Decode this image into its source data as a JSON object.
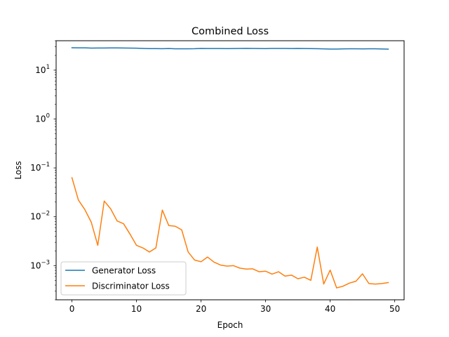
{
  "chart_data": {
    "type": "line",
    "title": "Combined Loss",
    "xlabel": "Epoch",
    "ylabel": "Loss",
    "yscale": "log",
    "xlim": [
      -2.45,
      51.45
    ],
    "ylim": [
      0.0002,
      40
    ],
    "xticks": [
      0,
      10,
      20,
      30,
      40,
      50
    ],
    "yticks": [
      {
        "value": 0.001,
        "base": "10",
        "exp": "−3"
      },
      {
        "value": 0.01,
        "base": "10",
        "exp": "−2"
      },
      {
        "value": 0.1,
        "base": "10",
        "exp": "−1"
      },
      {
        "value": 1,
        "base": "10",
        "exp": "0"
      },
      {
        "value": 10,
        "base": "10",
        "exp": "1"
      }
    ],
    "grid": false,
    "legend_position": "lower-left",
    "x": [
      0,
      1,
      2,
      3,
      4,
      5,
      6,
      7,
      8,
      9,
      10,
      11,
      12,
      13,
      14,
      15,
      16,
      17,
      18,
      19,
      20,
      21,
      22,
      23,
      24,
      25,
      26,
      27,
      28,
      29,
      30,
      31,
      32,
      33,
      34,
      35,
      36,
      37,
      38,
      39,
      40,
      41,
      42,
      43,
      44,
      45,
      46,
      47,
      48,
      49
    ],
    "series": [
      {
        "name": "Generator Loss",
        "color": "#1f77b4",
        "values": [
          28.7,
          28.6,
          28.6,
          28.3,
          28.4,
          28.4,
          28.5,
          28.5,
          28.4,
          28.3,
          28.1,
          27.8,
          27.6,
          27.6,
          27.5,
          27.7,
          27.4,
          27.4,
          27.4,
          27.5,
          27.8,
          27.7,
          27.7,
          27.7,
          27.6,
          27.7,
          27.8,
          27.9,
          27.8,
          27.7,
          27.6,
          27.8,
          27.8,
          27.8,
          27.7,
          27.8,
          27.7,
          27.6,
          27.5,
          27.2,
          27.0,
          27.0,
          27.2,
          27.3,
          27.3,
          27.2,
          27.4,
          27.3,
          27.1,
          26.9
        ]
      },
      {
        "name": "Discriminator Loss",
        "color": "#ff7f0e",
        "values": [
          0.063,
          0.022,
          0.014,
          0.0077,
          0.0026,
          0.021,
          0.0145,
          0.0082,
          0.0072,
          0.0044,
          0.0026,
          0.0023,
          0.0019,
          0.0023,
          0.0137,
          0.0066,
          0.0064,
          0.0054,
          0.0019,
          0.0013,
          0.0012,
          0.0015,
          0.00118,
          0.00103,
          0.00098,
          0.001,
          0.00089,
          0.00085,
          0.00086,
          0.00075,
          0.00077,
          0.00067,
          0.00075,
          0.00061,
          0.00064,
          0.00054,
          0.00058,
          0.0005,
          0.0024,
          0.00042,
          0.00081,
          0.00035,
          0.00038,
          0.00044,
          0.00048,
          0.00068,
          0.00043,
          0.00042,
          0.00043,
          0.00045
        ]
      }
    ]
  }
}
